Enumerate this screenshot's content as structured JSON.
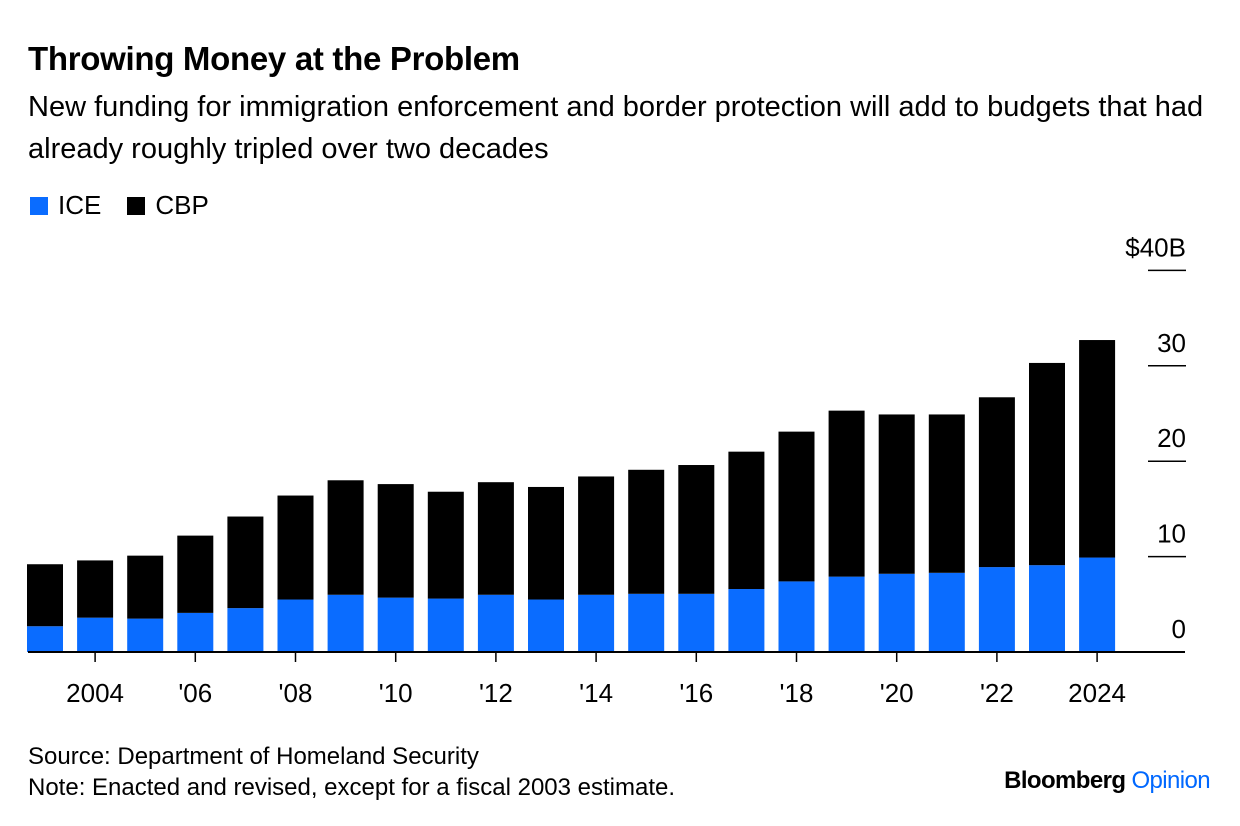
{
  "header": {
    "title": "Throwing Money at the Problem",
    "subtitle": "New funding for immigration enforcement and border protection will add to budgets that had already roughly tripled over two decades"
  },
  "footer": {
    "source": "Source: Department of Homeland Security",
    "note": "Note: Enacted and revised, except for a fiscal 2003 estimate."
  },
  "brand": {
    "name": "Bloomberg",
    "section": "Opinion"
  },
  "colors": {
    "ice": "#0a6cff",
    "cbp": "#000000"
  },
  "chart_data": {
    "type": "bar",
    "stacked": true,
    "title": "Throwing Money at the Problem",
    "subtitle": "New funding for immigration enforcement and border protection will add to budgets that had already roughly tripled over two decades",
    "x": [
      2003,
      2004,
      2005,
      2006,
      2007,
      2008,
      2009,
      2010,
      2011,
      2012,
      2013,
      2014,
      2015,
      2016,
      2017,
      2018,
      2019,
      2020,
      2021,
      2022,
      2023,
      2024
    ],
    "x_tick_labels": [
      "2004",
      "'06",
      "'08",
      "'10",
      "'12",
      "'14",
      "'16",
      "'18",
      "'20",
      "'22",
      "2024"
    ],
    "x_tick_years": [
      2004,
      2006,
      2008,
      2010,
      2012,
      2014,
      2016,
      2018,
      2020,
      2022,
      2024
    ],
    "series": [
      {
        "name": "ICE",
        "color": "#0a6cff",
        "values": [
          2.7,
          3.6,
          3.5,
          4.1,
          4.6,
          5.5,
          6.0,
          5.7,
          5.6,
          6.0,
          5.5,
          6.0,
          6.1,
          6.1,
          6.6,
          7.4,
          7.9,
          8.2,
          8.3,
          8.9,
          9.1,
          9.9
        ]
      },
      {
        "name": "CBP",
        "color": "#000000",
        "values": [
          6.5,
          6.0,
          6.6,
          8.1,
          9.6,
          10.9,
          12.0,
          11.9,
          11.2,
          11.8,
          11.8,
          12.4,
          13.0,
          13.5,
          14.4,
          15.7,
          17.4,
          16.7,
          16.6,
          17.8,
          21.2,
          22.8
        ]
      }
    ],
    "y_ticks": [
      0,
      10,
      20,
      30,
      40
    ],
    "y_tick_labels": [
      "0",
      "10",
      "20",
      "30",
      "$40B"
    ],
    "ylim": [
      0,
      40
    ],
    "grid": false,
    "legend": "top-left"
  }
}
